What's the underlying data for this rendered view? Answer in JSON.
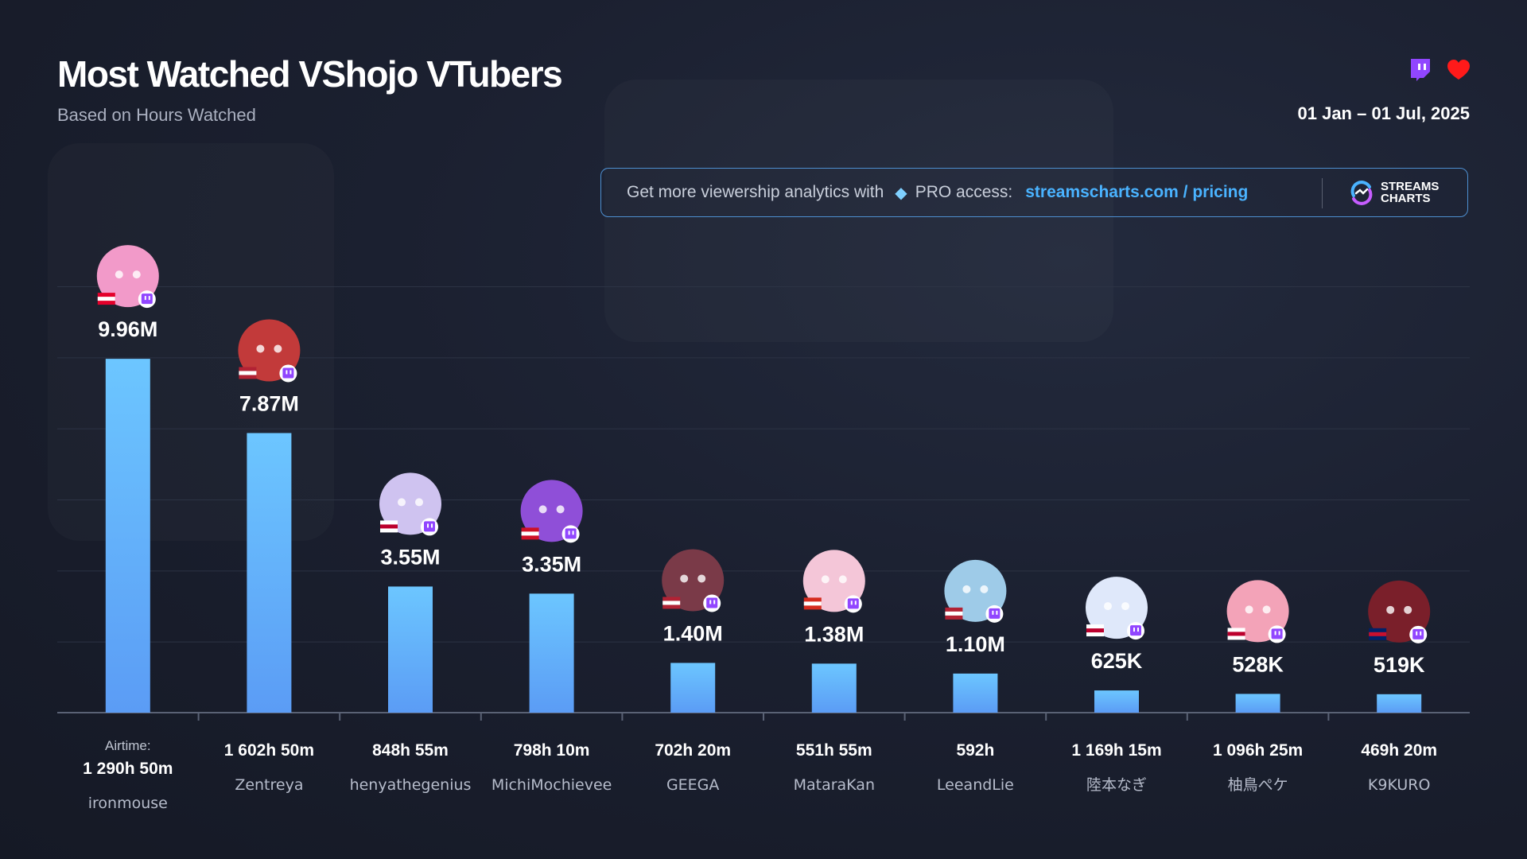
{
  "header": {
    "title": "Most Watched VShojo VTubers",
    "subtitle": "Based on Hours Watched",
    "date_range": "01 Jan – 01 Jul, 2025"
  },
  "platforms": [
    "twitch-icon",
    "youtube-icon"
  ],
  "promo": {
    "text": "Get more viewership analytics with",
    "gem_icon": "diamond-icon",
    "pro_text": "PRO access:",
    "link_text": "streamscharts.com / pricing",
    "brand_line1": "STREAMS",
    "brand_line2": "CHARTS"
  },
  "colors": {
    "bar_top": "#6cc6ff",
    "bar_bottom": "#5b9cf5",
    "twitch": "#9146ff",
    "youtube": "#ff0000",
    "link": "#4ab3ff"
  },
  "chart_data": {
    "type": "bar",
    "title": "Most Watched VShojo VTubers",
    "subtitle": "Based on Hours Watched",
    "categories": [
      "ironmouse",
      "Zentreya",
      "henyathegenius",
      "MichiMochievee",
      "GEEGA",
      "MataraKan",
      "LeeandLie",
      "陸本なぎ",
      "柚鳥ぺケ",
      "K9KURO"
    ],
    "values": [
      9960000,
      7870000,
      3550000,
      3350000,
      1400000,
      1380000,
      1100000,
      625000,
      528000,
      519000
    ],
    "value_labels": [
      "9.96M",
      "7.87M",
      "3.55M",
      "3.35M",
      "1.40M",
      "1.38M",
      "1.10M",
      "625K",
      "528K",
      "519K"
    ],
    "airtime_prefix": "Airtime:",
    "airtime": [
      "1 290h 50m",
      "1 602h 50m",
      "848h 55m",
      "798h 10m",
      "702h 20m",
      "551h 55m",
      "592h",
      "1 169h 15m",
      "1 096h 25m",
      "469h 20m"
    ],
    "countries": [
      "PR",
      "US",
      "JP",
      "ID",
      "US",
      "CA",
      "US",
      "JP",
      "JP",
      "GB"
    ],
    "platform": "twitch",
    "ylim": [
      0,
      12000000
    ],
    "grid": true,
    "legend": "none"
  }
}
